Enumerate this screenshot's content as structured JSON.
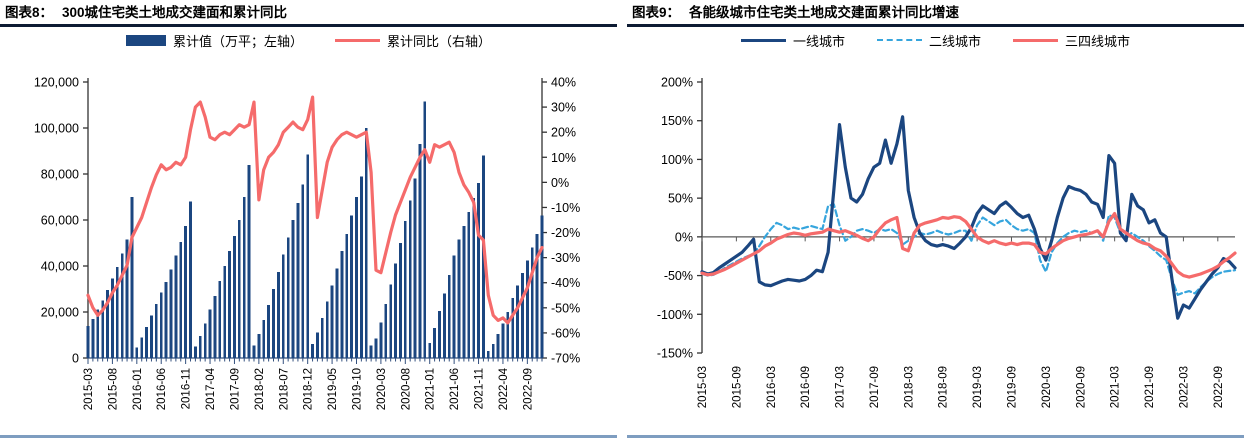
{
  "panels": [
    {
      "heading_label": "图表8：",
      "heading_title": "300城住宅类土地成交建面和累计同比"
    },
    {
      "heading_label": "图表9：",
      "heading_title": "各能级城市住宅类土地成交建面累计同比增速"
    }
  ],
  "colors": {
    "navy": "#1b4680",
    "salmon": "#f56b6b",
    "lightblue": "#36a5dd",
    "axis_dark": "#333333",
    "axis_navy": "#33507e",
    "zero_line": "#595959",
    "heading_rule": "#0d1b33",
    "bottom_rule": "#7e9dc0"
  },
  "chart_data": [
    {
      "type": "bar",
      "subtype": "combo-bar-line",
      "title": "300城住宅类土地成交建面和累计同比",
      "x_monthly_start": "2015-03",
      "x_monthly_end": "2022-12",
      "x_tick_labels": [
        "2015-03",
        "2015-08",
        "2016-01",
        "2016-06",
        "2016-11",
        "2017-04",
        "2017-09",
        "2018-02",
        "2018-07",
        "2018-12",
        "2019-05",
        "2019-10",
        "2020-03",
        "2020-08",
        "2021-01",
        "2021-06",
        "2021-11",
        "2022-04",
        "2022-09"
      ],
      "x_label_every_n_months": 5,
      "left_axis": {
        "title": "累计值（万平）",
        "min": 0,
        "max": 120000,
        "step": 20000,
        "tick_labels": [
          "120,000",
          "100,000",
          "80,000",
          "60,000",
          "40,000",
          "20,000",
          "0"
        ]
      },
      "right_axis": {
        "title": "累计同比",
        "min": -70,
        "max": 40,
        "step": 10,
        "tick_labels": [
          "40%",
          "30%",
          "20%",
          "10%",
          "0%",
          "-10%",
          "-20%",
          "-30%",
          "-40%",
          "-50%",
          "-60%",
          "-70%"
        ]
      },
      "series": [
        {
          "name": "累计值（万平；左轴）",
          "type": "bar",
          "axis": "left",
          "color": "#1b4680",
          "values": [
            14000,
            17000,
            21000,
            25000,
            29500,
            34500,
            39500,
            45500,
            51500,
            70000,
            4500,
            9000,
            13500,
            18500,
            23500,
            28500,
            33000,
            38500,
            44500,
            50500,
            57500,
            68000,
            5000,
            9500,
            15000,
            21000,
            27000,
            33500,
            40000,
            46500,
            53000,
            60000,
            70000,
            84000,
            5500,
            10500,
            16500,
            23000,
            30000,
            37500,
            45000,
            52500,
            60000,
            67500,
            75500,
            88500,
            6000,
            11000,
            17500,
            24500,
            31500,
            39000,
            46500,
            54000,
            62000,
            70000,
            79000,
            100000,
            5500,
            8500,
            15500,
            23500,
            32000,
            41000,
            50000,
            59500,
            68500,
            78000,
            93000,
            111500,
            6500,
            13000,
            20500,
            28000,
            36000,
            44500,
            51500,
            57500,
            63500,
            69500,
            76000,
            88000,
            3000,
            6000,
            10500,
            15000,
            20000,
            26000,
            31500,
            37000,
            42500,
            48000,
            54000,
            62000
          ]
        },
        {
          "name": "累计同比（右轴）",
          "type": "line",
          "axis": "right",
          "color": "#f56b6b",
          "values_pct": [
            -45,
            -50,
            -53,
            -51,
            -48,
            -44,
            -41,
            -37,
            -33,
            -22,
            -18,
            -14,
            -8,
            -2,
            3,
            7,
            5,
            6,
            8,
            7,
            10,
            21,
            30,
            32,
            26,
            18,
            17,
            19,
            20,
            19,
            21,
            23,
            22,
            23,
            32,
            -7,
            5,
            10,
            12,
            15,
            20,
            22,
            24,
            22,
            21,
            25,
            34,
            -14,
            -3,
            8,
            14,
            17,
            19,
            20,
            19,
            18,
            19,
            20,
            4,
            -35,
            -36,
            -28,
            -20,
            -13,
            -8,
            -3,
            2,
            6,
            10,
            13,
            8,
            15,
            14,
            15,
            16,
            12,
            4,
            -1,
            -4,
            -8,
            -21,
            -23,
            -45,
            -53,
            -55,
            -54,
            -56,
            -53,
            -50,
            -46,
            -42,
            -36,
            -30,
            -26
          ]
        }
      ]
    },
    {
      "type": "line",
      "title": "各能级城市住宅类土地成交建面累计同比增速",
      "x_monthly_start": "2015-03",
      "x_monthly_end": "2022-12",
      "x_tick_labels": [
        "2015-03",
        "2015-09",
        "2016-03",
        "2016-09",
        "2017-03",
        "2017-09",
        "2018-03",
        "2018-09",
        "2019-03",
        "2019-09",
        "2020-03",
        "2020-09",
        "2021-03",
        "2021-09",
        "2022-03",
        "2022-09"
      ],
      "x_label_every_n_months": 6,
      "y_axis": {
        "min": -150,
        "max": 200,
        "step": 50,
        "tick_labels": [
          "200%",
          "150%",
          "100%",
          "50%",
          "0%",
          "-50%",
          "-100%",
          "-150%"
        ]
      },
      "zero_line": true,
      "series": [
        {
          "name": "一线城市",
          "type": "line",
          "dashed": false,
          "color": "#1b4680",
          "values_pct": [
            -45,
            -48,
            -46,
            -40,
            -35,
            -30,
            -25,
            -20,
            -12,
            -3,
            -58,
            -62,
            -63,
            -60,
            -57,
            -55,
            -56,
            -57,
            -55,
            -50,
            -43,
            -45,
            -20,
            60,
            145,
            90,
            50,
            45,
            55,
            75,
            90,
            95,
            125,
            95,
            120,
            155,
            60,
            25,
            5,
            -5,
            -10,
            -12,
            -10,
            -12,
            -15,
            -8,
            0,
            12,
            30,
            40,
            35,
            30,
            40,
            45,
            38,
            30,
            25,
            28,
            10,
            -15,
            -30,
            -5,
            25,
            50,
            65,
            62,
            60,
            55,
            45,
            42,
            25,
            105,
            95,
            5,
            -5,
            55,
            40,
            35,
            18,
            22,
            5,
            0,
            -55,
            -105,
            -88,
            -92,
            -80,
            -68,
            -58,
            -48,
            -40,
            -28,
            -32,
            -40
          ]
        },
        {
          "name": "二线城市",
          "type": "line",
          "dashed": true,
          "color": "#36a5dd",
          "values_pct": [
            -48,
            -50,
            -49,
            -45,
            -40,
            -36,
            -32,
            -28,
            -25,
            -22,
            -12,
            0,
            10,
            18,
            15,
            10,
            12,
            10,
            12,
            14,
            12,
            10,
            40,
            42,
            15,
            -5,
            0,
            8,
            10,
            8,
            5,
            10,
            8,
            10,
            5,
            -10,
            -5,
            0,
            5,
            3,
            5,
            8,
            5,
            3,
            5,
            8,
            8,
            -5,
            15,
            25,
            20,
            15,
            20,
            22,
            15,
            10,
            8,
            10,
            5,
            -30,
            -45,
            -20,
            -8,
            0,
            5,
            8,
            6,
            8,
            5,
            8,
            -5,
            28,
            25,
            5,
            0,
            5,
            0,
            -5,
            -12,
            -18,
            -25,
            -30,
            -55,
            -75,
            -72,
            -70,
            -73,
            -65,
            -58,
            -52,
            -48,
            -45,
            -44,
            -43
          ]
        },
        {
          "name": "三四线城市",
          "type": "line",
          "dashed": false,
          "color": "#f56b6b",
          "values_pct": [
            -47,
            -49,
            -48,
            -45,
            -42,
            -38,
            -34,
            -30,
            -26,
            -22,
            -18,
            -12,
            -8,
            -3,
            0,
            3,
            5,
            4,
            2,
            4,
            5,
            6,
            10,
            8,
            6,
            8,
            5,
            2,
            -2,
            -5,
            0,
            10,
            18,
            22,
            25,
            -15,
            -18,
            5,
            15,
            18,
            20,
            22,
            25,
            24,
            26,
            25,
            20,
            10,
            0,
            -5,
            -8,
            -5,
            -8,
            -10,
            -8,
            -10,
            -8,
            -8,
            -10,
            -20,
            -22,
            -15,
            -10,
            -5,
            -2,
            0,
            2,
            3,
            5,
            8,
            0,
            20,
            30,
            10,
            5,
            0,
            -5,
            -8,
            -10,
            -15,
            -18,
            -25,
            -35,
            -45,
            -50,
            -52,
            -50,
            -48,
            -45,
            -42,
            -38,
            -32,
            -27,
            -21
          ]
        }
      ]
    }
  ]
}
